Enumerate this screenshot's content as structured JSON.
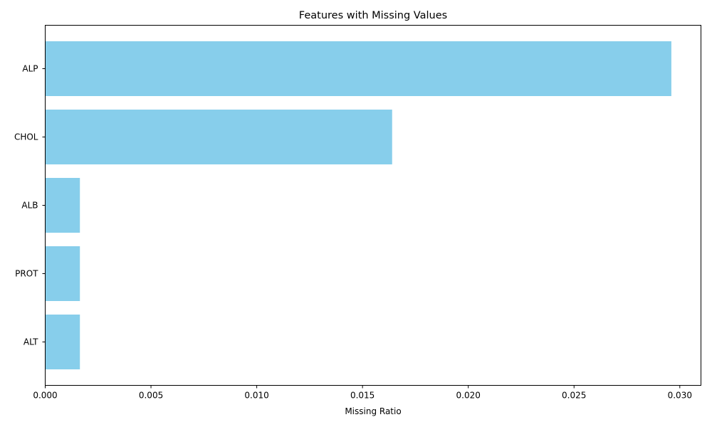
{
  "chart_data": {
    "type": "bar",
    "orientation": "horizontal",
    "title": "Features with Missing Values",
    "xlabel": "Missing Ratio",
    "ylabel": "",
    "categories": [
      "ALP",
      "CHOL",
      "ALB",
      "PROT",
      "ALT"
    ],
    "values": [
      0.0296,
      0.0164,
      0.00164,
      0.00164,
      0.00164
    ],
    "xlim": [
      0,
      0.031
    ],
    "xticks": [
      0,
      0.005,
      0.01,
      0.015,
      0.02,
      0.025,
      0.03
    ],
    "xtick_labels": [
      "0.000",
      "0.005",
      "0.010",
      "0.015",
      "0.020",
      "0.025",
      "0.030"
    ],
    "bar_color": "#87CEEB",
    "grid": false,
    "legend": "none"
  }
}
